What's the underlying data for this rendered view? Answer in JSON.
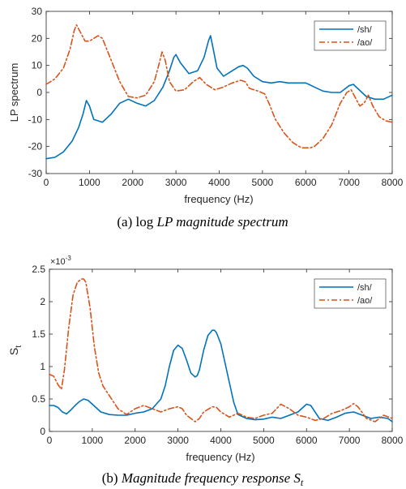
{
  "chart_data": [
    {
      "type": "line",
      "xlabel": "frequency (Hz)",
      "ylabel": "LP spectrum",
      "xlim": [
        0,
        8000
      ],
      "ylim": [
        -30,
        30
      ],
      "xticks": [
        0,
        1000,
        2000,
        3000,
        4000,
        5000,
        6000,
        7000,
        8000
      ],
      "yticks": [
        -30,
        -20,
        -10,
        0,
        10,
        20,
        30
      ],
      "legend_position": "top-right",
      "caption_prefix": "(a) log ",
      "caption_italic": "LP magnitude spectrum",
      "series": [
        {
          "name": "/sh/",
          "color": "#0072BD",
          "dash": "solid",
          "x": [
            0,
            200,
            400,
            600,
            750,
            850,
            930,
            1000,
            1100,
            1300,
            1500,
            1700,
            1900,
            2100,
            2300,
            2500,
            2700,
            2850,
            2950,
            3000,
            3100,
            3300,
            3500,
            3650,
            3750,
            3800,
            3850,
            3950,
            4100,
            4300,
            4450,
            4550,
            4650,
            4800,
            5000,
            5200,
            5400,
            5600,
            5800,
            6000,
            6200,
            6400,
            6600,
            6800,
            7000,
            7100,
            7200,
            7400,
            7600,
            7800,
            8000
          ],
          "y": [
            -24.5,
            -24,
            -22,
            -18,
            -13,
            -8,
            -3,
            -5,
            -10,
            -11,
            -8,
            -4,
            -2.5,
            -4,
            -5,
            -3,
            2,
            8,
            13,
            14,
            11,
            7,
            8,
            13,
            19,
            21,
            17,
            9,
            6,
            8,
            9.5,
            10,
            9,
            6,
            4,
            3.5,
            4,
            3.5,
            3.5,
            3.5,
            2,
            0.5,
            0,
            0,
            2.5,
            3,
            1.5,
            -1.5,
            -2.5,
            -2.5,
            -1
          ]
        },
        {
          "name": "/ao/",
          "color": "#D95319",
          "dash": "dashdot",
          "x": [
            0,
            200,
            400,
            550,
            650,
            700,
            800,
            900,
            1000,
            1100,
            1200,
            1300,
            1500,
            1700,
            1900,
            2100,
            2300,
            2500,
            2600,
            2680,
            2750,
            2850,
            3000,
            3200,
            3400,
            3550,
            3700,
            3900,
            4100,
            4300,
            4500,
            4600,
            4700,
            4900,
            5050,
            5150,
            5300,
            5500,
            5700,
            5900,
            6100,
            6200,
            6400,
            6600,
            6800,
            6950,
            7050,
            7150,
            7250,
            7350,
            7450,
            7550,
            7700,
            7850,
            8000
          ],
          "y": [
            3,
            5,
            9,
            16,
            23,
            25,
            22,
            19,
            19,
            20,
            21,
            20,
            12,
            4,
            -1.5,
            -2,
            -1,
            4,
            10,
            15,
            12,
            4,
            0.5,
            1,
            4,
            5.5,
            3,
            1,
            2,
            3.5,
            4.5,
            4,
            1.5,
            0.5,
            -0.5,
            -4,
            -10,
            -15,
            -18.5,
            -20.5,
            -20.5,
            -20,
            -17,
            -12,
            -4,
            0,
            1,
            -2,
            -5,
            -4,
            -1,
            -5,
            -9,
            -10.5,
            -11
          ]
        }
      ]
    },
    {
      "type": "line",
      "xlabel": "frequency (Hz)",
      "ylabel_base": "S",
      "ylabel_sub": "t",
      "exponent_prefix": "×10",
      "exponent_power": "-3",
      "xlim": [
        0,
        8000
      ],
      "ylim": [
        0,
        2.5
      ],
      "xticks": [
        0,
        1000,
        2000,
        3000,
        4000,
        5000,
        6000,
        7000,
        8000
      ],
      "yticks": [
        0,
        0.5,
        1,
        1.5,
        2,
        2.5
      ],
      "legend_position": "top-right",
      "caption_prefix": "(b) ",
      "caption_italic": "Magnitude frequency response",
      "caption_symbol": "S",
      "caption_symbol_sub": "t",
      "series": [
        {
          "name": "/sh/",
          "color": "#0072BD",
          "dash": "solid",
          "x": [
            0,
            100,
            200,
            300,
            400,
            500,
            600,
            700,
            800,
            900,
            1000,
            1200,
            1400,
            1600,
            1800,
            2000,
            2200,
            2400,
            2600,
            2700,
            2800,
            2900,
            3000,
            3100,
            3200,
            3300,
            3400,
            3450,
            3500,
            3600,
            3700,
            3800,
            3850,
            3900,
            4000,
            4100,
            4200,
            4300,
            4400,
            4600,
            4800,
            5000,
            5200,
            5400,
            5600,
            5800,
            6000,
            6100,
            6300,
            6500,
            6700,
            6900,
            7100,
            7300,
            7500,
            7700,
            7900,
            8000
          ],
          "y": [
            0.4,
            0.4,
            0.37,
            0.3,
            0.27,
            0.33,
            0.4,
            0.46,
            0.5,
            0.48,
            0.42,
            0.3,
            0.26,
            0.25,
            0.25,
            0.28,
            0.3,
            0.35,
            0.5,
            0.7,
            1.0,
            1.25,
            1.33,
            1.28,
            1.1,
            0.9,
            0.84,
            0.86,
            0.95,
            1.25,
            1.48,
            1.56,
            1.56,
            1.52,
            1.35,
            1.05,
            0.75,
            0.45,
            0.26,
            0.2,
            0.18,
            0.19,
            0.22,
            0.2,
            0.25,
            0.3,
            0.42,
            0.4,
            0.2,
            0.17,
            0.22,
            0.28,
            0.3,
            0.25,
            0.2,
            0.22,
            0.2,
            0.15
          ]
        },
        {
          "name": "/ao/",
          "color": "#D95319",
          "dash": "dashdot",
          "x": [
            0,
            100,
            200,
            280,
            350,
            450,
            550,
            650,
            750,
            800,
            850,
            950,
            1050,
            1150,
            1250,
            1400,
            1600,
            1800,
            2000,
            2200,
            2400,
            2600,
            2800,
            3000,
            3100,
            3200,
            3400,
            3500,
            3600,
            3800,
            3900,
            4000,
            4200,
            4400,
            4600,
            4800,
            5000,
            5200,
            5400,
            5600,
            5800,
            6000,
            6200,
            6400,
            6600,
            6800,
            7000,
            7100,
            7200,
            7400,
            7600,
            7800,
            8000
          ],
          "y": [
            0.88,
            0.85,
            0.72,
            0.65,
            0.95,
            1.6,
            2.1,
            2.3,
            2.35,
            2.35,
            2.3,
            1.9,
            1.3,
            0.9,
            0.7,
            0.55,
            0.35,
            0.26,
            0.35,
            0.4,
            0.35,
            0.3,
            0.35,
            0.38,
            0.35,
            0.25,
            0.15,
            0.2,
            0.3,
            0.38,
            0.37,
            0.3,
            0.22,
            0.28,
            0.22,
            0.2,
            0.25,
            0.28,
            0.42,
            0.35,
            0.25,
            0.22,
            0.17,
            0.2,
            0.28,
            0.32,
            0.38,
            0.43,
            0.38,
            0.2,
            0.15,
            0.25,
            0.2
          ]
        }
      ]
    }
  ]
}
